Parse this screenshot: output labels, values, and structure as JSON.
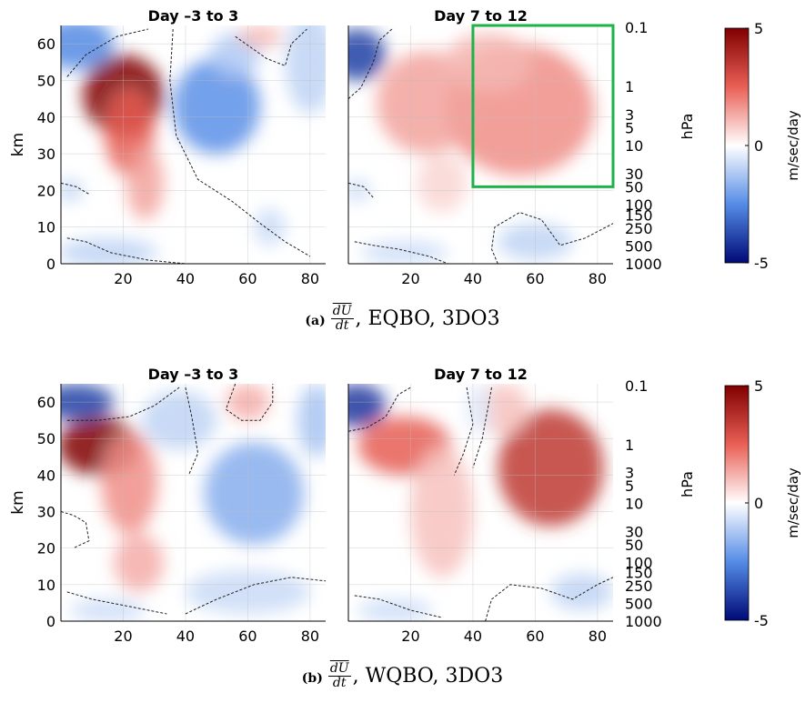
{
  "chart_data": [
    {
      "type": "heatmap",
      "panel_label": "(a)",
      "caption_num": "dU",
      "caption_den": "dt",
      "caption_text": ", EQBO, 3DO3",
      "ylabel": "km",
      "ylabel_right": "hPa",
      "xlim": [
        0,
        85
      ],
      "ylim": [
        0,
        65
      ],
      "xticks": [
        "20",
        "40",
        "60",
        "80"
      ],
      "yticks": [
        "0",
        "10",
        "20",
        "30",
        "40",
        "50",
        "60"
      ],
      "pressure_ticks": [
        "0.1",
        "1",
        "3",
        "5",
        "10",
        "30",
        "50",
        "100",
        "150",
        "250",
        "500",
        "1000"
      ],
      "subplots": [
        {
          "title": "Day -3 to 3",
          "blobs": [
            {
              "x": 20,
              "y": 46,
              "rx": 13,
              "ry": 11,
              "value": 3.6
            },
            {
              "x": 22,
              "y": 36,
              "rx": 8,
              "ry": 12,
              "value": 1.6
            },
            {
              "x": 27,
              "y": 22,
              "rx": 6,
              "ry": 10,
              "value": 0.9
            },
            {
              "x": 5,
              "y": 60,
              "rx": 12,
              "ry": 7,
              "value": -1.6
            },
            {
              "x": 50,
              "y": 43,
              "rx": 14,
              "ry": 13,
              "value": -1.5
            },
            {
              "x": 56,
              "y": 57,
              "rx": 8,
              "ry": 6,
              "value": -0.7
            },
            {
              "x": 80,
              "y": 55,
              "rx": 8,
              "ry": 14,
              "value": -0.6
            },
            {
              "x": 15,
              "y": 3,
              "rx": 16,
              "ry": 4,
              "value": -0.6
            },
            {
              "x": 64,
              "y": 62,
              "rx": 7,
              "ry": 3,
              "value": 0.7
            },
            {
              "x": 67,
              "y": 10,
              "rx": 5,
              "ry": 5,
              "value": -0.5
            },
            {
              "x": 3,
              "y": 20,
              "rx": 4,
              "ry": 3,
              "value": -0.6
            }
          ],
          "contours": [
            {
              "points": [
                [
                  2,
                  51
                ],
                [
                  8,
                  57
                ],
                [
                  18,
                  62
                ],
                [
                  28,
                  64
                ]
              ]
            },
            {
              "points": [
                [
                  36,
                  64
                ],
                [
                  35,
                  50
                ],
                [
                  37,
                  35
                ],
                [
                  44,
                  23
                ],
                [
                  55,
                  17
                ],
                [
                  64,
                  11
                ],
                [
                  72,
                  6
                ],
                [
                  80,
                  2
                ]
              ]
            },
            {
              "points": [
                [
                  56,
                  62
                ],
                [
                  66,
                  56
                ],
                [
                  72,
                  54
                ],
                [
                  74,
                  60
                ],
                [
                  79,
                  64
                ]
              ]
            },
            {
              "points": [
                [
                  2,
                  7
                ],
                [
                  8,
                  6
                ],
                [
                  16,
                  3
                ],
                [
                  28,
                  1
                ],
                [
                  40,
                  0
                ]
              ]
            },
            {
              "points": [
                [
                  0,
                  22
                ],
                [
                  5,
                  21
                ],
                [
                  9,
                  19
                ]
              ]
            }
          ],
          "box": null
        },
        {
          "title": "Day 7 to 12",
          "blobs": [
            {
              "x": 55,
              "y": 42,
              "rx": 24,
              "ry": 18,
              "value": 1.1
            },
            {
              "x": 25,
              "y": 44,
              "rx": 16,
              "ry": 14,
              "value": 0.9
            },
            {
              "x": 45,
              "y": 55,
              "rx": 14,
              "ry": 8,
              "value": 0.7
            },
            {
              "x": 30,
              "y": 22,
              "rx": 8,
              "ry": 8,
              "value": 0.4
            },
            {
              "x": 3,
              "y": 57,
              "rx": 9,
              "ry": 7,
              "value": -2.5
            },
            {
              "x": 60,
              "y": 6,
              "rx": 12,
              "ry": 5,
              "value": -0.6
            },
            {
              "x": 18,
              "y": 3,
              "rx": 14,
              "ry": 3,
              "value": -0.5
            },
            {
              "x": 3,
              "y": 20,
              "rx": 4,
              "ry": 3,
              "value": -0.5
            }
          ],
          "contours": [
            {
              "points": [
                [
                  0,
                  45
                ],
                [
                  4,
                  48
                ],
                [
                  8,
                  55
                ],
                [
                  10,
                  61
                ],
                [
                  14,
                  64
                ]
              ]
            },
            {
              "points": [
                [
                  0,
                  22
                ],
                [
                  5,
                  21
                ],
                [
                  8,
                  18
                ]
              ]
            },
            {
              "points": [
                [
                  2,
                  6
                ],
                [
                  8,
                  5
                ],
                [
                  16,
                  4
                ],
                [
                  26,
                  2
                ],
                [
                  32,
                  0
                ]
              ]
            },
            {
              "points": [
                [
                  48,
                  0
                ],
                [
                  46,
                  4
                ],
                [
                  47,
                  10
                ],
                [
                  55,
                  14
                ],
                [
                  62,
                  12
                ],
                [
                  68,
                  5
                ],
                [
                  76,
                  7
                ],
                [
                  85,
                  11
                ]
              ]
            }
          ],
          "box": {
            "x": [
              40,
              85
            ],
            "y": [
              21,
              65
            ]
          }
        }
      ],
      "colorbar": {
        "min_label": "-5",
        "mid_label": "0",
        "max_label": "5",
        "label": "m/sec/day"
      }
    },
    {
      "type": "heatmap",
      "panel_label": "(b)",
      "caption_num": "dU",
      "caption_den": "dt",
      "caption_text": ", WQBO, 3DO3",
      "ylabel": "km",
      "ylabel_right": "hPa",
      "xlim": [
        0,
        85
      ],
      "ylim": [
        0,
        65
      ],
      "xticks": [
        "20",
        "40",
        "60",
        "80"
      ],
      "yticks": [
        "0",
        "10",
        "20",
        "30",
        "40",
        "50",
        "60"
      ],
      "pressure_ticks": [
        "0.1",
        "1",
        "3",
        "5",
        "10",
        "30",
        "50",
        "100",
        "150",
        "250",
        "500",
        "1000"
      ],
      "subplots": [
        {
          "title": "Day -3 to 3",
          "blobs": [
            {
              "x": 12,
              "y": 48,
              "rx": 13,
              "ry": 8,
              "value": 3.4
            },
            {
              "x": 22,
              "y": 38,
              "rx": 9,
              "ry": 14,
              "value": 1.1
            },
            {
              "x": 25,
              "y": 16,
              "rx": 8,
              "ry": 8,
              "value": 0.8
            },
            {
              "x": 5,
              "y": 60,
              "rx": 12,
              "ry": 5,
              "value": -2.5
            },
            {
              "x": 62,
              "y": 35,
              "rx": 16,
              "ry": 14,
              "value": -1.1
            },
            {
              "x": 38,
              "y": 55,
              "rx": 12,
              "ry": 8,
              "value": -0.6
            },
            {
              "x": 82,
              "y": 55,
              "rx": 6,
              "ry": 10,
              "value": -0.8
            },
            {
              "x": 60,
              "y": 60,
              "rx": 7,
              "ry": 5,
              "value": 0.8
            },
            {
              "x": 60,
              "y": 8,
              "rx": 20,
              "ry": 6,
              "value": -0.5
            },
            {
              "x": 15,
              "y": 3,
              "rx": 12,
              "ry": 3,
              "value": -0.5
            }
          ],
          "contours": [
            {
              "points": [
                [
                  2,
                  55
                ],
                [
                  12,
                  55
                ],
                [
                  22,
                  56
                ],
                [
                  30,
                  59
                ],
                [
                  38,
                  64
                ]
              ]
            },
            {
              "points": [
                [
                  40,
                  64
                ],
                [
                  42,
                  56
                ],
                [
                  44,
                  46
                ],
                [
                  41,
                  40
                ]
              ]
            },
            {
              "points": [
                [
                  56,
                  65
                ],
                [
                  53,
                  58
                ],
                [
                  58,
                  55
                ],
                [
                  64,
                  55
                ],
                [
                  68,
                  60
                ],
                [
                  68,
                  65
                ]
              ]
            },
            {
              "points": [
                [
                  0,
                  30
                ],
                [
                  4,
                  29
                ],
                [
                  8,
                  27
                ],
                [
                  9,
                  22
                ],
                [
                  4,
                  20
                ]
              ]
            },
            {
              "points": [
                [
                  2,
                  8
                ],
                [
                  10,
                  6
                ],
                [
                  22,
                  4
                ],
                [
                  34,
                  2
                ]
              ]
            },
            {
              "points": [
                [
                  40,
                  2
                ],
                [
                  50,
                  6
                ],
                [
                  62,
                  10
                ],
                [
                  74,
                  12
                ],
                [
                  85,
                  11
                ]
              ]
            }
          ],
          "box": null
        },
        {
          "title": "Day 7 to 12",
          "blobs": [
            {
              "x": 65,
              "y": 42,
              "rx": 17,
              "ry": 16,
              "value": 2.2
            },
            {
              "x": 18,
              "y": 48,
              "rx": 15,
              "ry": 8,
              "value": 1.6
            },
            {
              "x": 30,
              "y": 30,
              "rx": 10,
              "ry": 18,
              "value": 0.6
            },
            {
              "x": 50,
              "y": 58,
              "rx": 8,
              "ry": 7,
              "value": 0.6
            },
            {
              "x": 3,
              "y": 59,
              "rx": 9,
              "ry": 6,
              "value": -2.6
            },
            {
              "x": 42,
              "y": 58,
              "rx": 4,
              "ry": 7,
              "value": -0.3
            },
            {
              "x": 75,
              "y": 8,
              "rx": 10,
              "ry": 5,
              "value": -0.6
            },
            {
              "x": 15,
              "y": 3,
              "rx": 12,
              "ry": 3,
              "value": -0.5
            }
          ],
          "contours": [
            {
              "points": [
                [
                  0,
                  52
                ],
                [
                  6,
                  53
                ],
                [
                  12,
                  56
                ],
                [
                  16,
                  62
                ],
                [
                  20,
                  64
                ]
              ]
            },
            {
              "points": [
                [
                  38,
                  64
                ],
                [
                  40,
                  54
                ],
                [
                  37,
                  46
                ],
                [
                  34,
                  40
                ]
              ]
            },
            {
              "points": [
                [
                  46,
                  64
                ],
                [
                  43,
                  50
                ],
                [
                  40,
                  42
                ]
              ]
            },
            {
              "points": [
                [
                  44,
                  0
                ],
                [
                  46,
                  6
                ],
                [
                  52,
                  10
                ],
                [
                  62,
                  9
                ],
                [
                  72,
                  6
                ],
                [
                  80,
                  10
                ],
                [
                  85,
                  12
                ]
              ]
            },
            {
              "points": [
                [
                  2,
                  7
                ],
                [
                  10,
                  6
                ],
                [
                  20,
                  3
                ],
                [
                  30,
                  1
                ]
              ]
            }
          ],
          "box": null
        }
      ],
      "colorbar": {
        "min_label": "-5",
        "mid_label": "0",
        "max_label": "5",
        "label": "m/sec/day"
      }
    }
  ]
}
